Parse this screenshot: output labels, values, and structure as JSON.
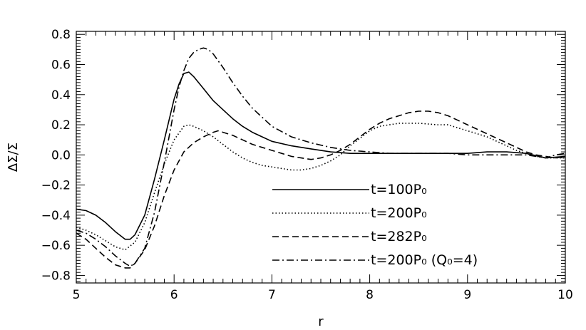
{
  "chart_data": {
    "type": "line",
    "xlabel": "r",
    "ylabel": "ΔΣ/Σ",
    "xlim": [
      5,
      10
    ],
    "ylim": [
      -0.85,
      0.82
    ],
    "x_ticks": [
      "5",
      "6",
      "7",
      "8",
      "9",
      "10"
    ],
    "y_ticks": [
      "−0.8",
      "−0.6",
      "−0.4",
      "−0.2",
      "0.0",
      "0.2",
      "0.4",
      "0.6",
      "0.8"
    ],
    "legend_position": "lower-right",
    "grid": false,
    "series": [
      {
        "name": "t=100P₀",
        "style": "solid",
        "x": [
          5.0,
          5.1,
          5.2,
          5.3,
          5.4,
          5.5,
          5.55,
          5.6,
          5.7,
          5.8,
          5.9,
          6.0,
          6.05,
          6.1,
          6.15,
          6.2,
          6.3,
          6.4,
          6.5,
          6.6,
          6.7,
          6.8,
          6.9,
          7.0,
          7.2,
          7.4,
          7.6,
          7.8,
          8.0,
          8.3,
          8.5,
          8.8,
          9.0,
          9.2,
          9.4,
          9.6,
          9.8,
          10.0
        ],
        "y": [
          -0.36,
          -0.37,
          -0.4,
          -0.45,
          -0.51,
          -0.56,
          -0.56,
          -0.53,
          -0.4,
          -0.16,
          0.1,
          0.37,
          0.47,
          0.54,
          0.55,
          0.52,
          0.44,
          0.36,
          0.3,
          0.24,
          0.19,
          0.15,
          0.12,
          0.09,
          0.06,
          0.04,
          0.02,
          0.01,
          0.01,
          0.01,
          0.01,
          0.01,
          0.01,
          0.02,
          0.02,
          0.01,
          -0.02,
          -0.01
        ]
      },
      {
        "name": "t=200P₀",
        "style": "dotted",
        "x": [
          5.0,
          5.1,
          5.2,
          5.3,
          5.4,
          5.5,
          5.6,
          5.7,
          5.8,
          5.9,
          6.0,
          6.1,
          6.15,
          6.2,
          6.3,
          6.4,
          6.5,
          6.6,
          6.7,
          6.8,
          6.9,
          7.0,
          7.1,
          7.2,
          7.3,
          7.4,
          7.5,
          7.6,
          7.7,
          7.8,
          7.9,
          8.0,
          8.1,
          8.2,
          8.3,
          8.5,
          8.7,
          8.8,
          8.9,
          9.0,
          9.1,
          9.2,
          9.3,
          9.4,
          9.5,
          9.6,
          9.7,
          9.8,
          9.9,
          10.0
        ],
        "y": [
          -0.48,
          -0.5,
          -0.53,
          -0.57,
          -0.61,
          -0.63,
          -0.58,
          -0.45,
          -0.25,
          -0.06,
          0.1,
          0.19,
          0.2,
          0.19,
          0.16,
          0.12,
          0.07,
          0.02,
          -0.02,
          -0.05,
          -0.07,
          -0.08,
          -0.09,
          -0.1,
          -0.1,
          -0.09,
          -0.07,
          -0.04,
          0.0,
          0.06,
          0.11,
          0.16,
          0.19,
          0.2,
          0.21,
          0.21,
          0.2,
          0.2,
          0.18,
          0.16,
          0.14,
          0.12,
          0.09,
          0.06,
          0.03,
          0.01,
          -0.01,
          -0.02,
          -0.02,
          -0.02
        ]
      },
      {
        "name": "t=282P₀",
        "style": "dashed",
        "x": [
          5.0,
          5.1,
          5.2,
          5.3,
          5.4,
          5.5,
          5.55,
          5.6,
          5.7,
          5.8,
          5.9,
          6.0,
          6.1,
          6.2,
          6.3,
          6.4,
          6.45,
          6.5,
          6.6,
          6.7,
          6.8,
          6.9,
          7.0,
          7.1,
          7.2,
          7.3,
          7.4,
          7.5,
          7.6,
          7.7,
          7.8,
          7.9,
          8.0,
          8.1,
          8.2,
          8.3,
          8.4,
          8.5,
          8.6,
          8.7,
          8.8,
          8.9,
          9.0,
          9.1,
          9.2,
          9.3,
          9.4,
          9.5,
          9.6,
          9.7,
          9.8,
          9.9,
          10.0
        ],
        "y": [
          -0.52,
          -0.56,
          -0.62,
          -0.68,
          -0.73,
          -0.75,
          -0.75,
          -0.72,
          -0.63,
          -0.47,
          -0.27,
          -0.1,
          0.02,
          0.08,
          0.12,
          0.15,
          0.16,
          0.15,
          0.13,
          0.1,
          0.07,
          0.05,
          0.03,
          0.01,
          -0.01,
          -0.02,
          -0.03,
          -0.02,
          0.0,
          0.03,
          0.07,
          0.12,
          0.17,
          0.21,
          0.24,
          0.26,
          0.28,
          0.29,
          0.29,
          0.28,
          0.26,
          0.23,
          0.2,
          0.17,
          0.14,
          0.11,
          0.08,
          0.05,
          0.02,
          0.0,
          -0.01,
          -0.02,
          -0.01
        ]
      },
      {
        "name": "t=200P₀ (Q₀=4)",
        "style": "dash-dot",
        "x": [
          5.0,
          5.1,
          5.2,
          5.3,
          5.4,
          5.5,
          5.55,
          5.6,
          5.7,
          5.8,
          5.9,
          6.0,
          6.05,
          6.1,
          6.15,
          6.2,
          6.25,
          6.3,
          6.35,
          6.4,
          6.5,
          6.6,
          6.7,
          6.8,
          6.9,
          7.0,
          7.2,
          7.4,
          7.6,
          7.8,
          8.0,
          8.2,
          8.4,
          8.6,
          8.8,
          9.0,
          9.2,
          9.4,
          9.6,
          9.8,
          9.9,
          10.0
        ],
        "y": [
          -0.5,
          -0.52,
          -0.56,
          -0.61,
          -0.67,
          -0.72,
          -0.74,
          -0.72,
          -0.62,
          -0.38,
          -0.05,
          0.3,
          0.45,
          0.56,
          0.64,
          0.68,
          0.7,
          0.71,
          0.7,
          0.67,
          0.58,
          0.48,
          0.39,
          0.31,
          0.25,
          0.19,
          0.12,
          0.08,
          0.05,
          0.03,
          0.02,
          0.01,
          0.01,
          0.01,
          0.01,
          0.0,
          0.0,
          0.0,
          0.0,
          -0.02,
          0.0,
          0.01
        ]
      }
    ]
  }
}
